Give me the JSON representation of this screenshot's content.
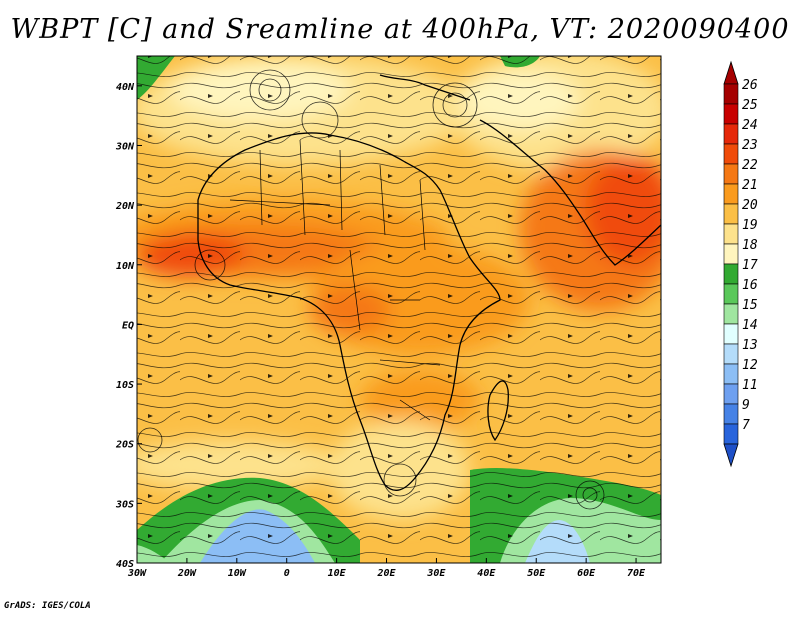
{
  "title": "WBPT [C] and Sreamline at 400hPa, VT: 2020090400",
  "credit": "GrADS: IGES/COLA",
  "map": {
    "lon_range": [
      -30,
      75
    ],
    "lat_range": [
      -40,
      45
    ],
    "lon_ticks": [
      {
        "value": -30,
        "label": "30W"
      },
      {
        "value": -20,
        "label": "20W"
      },
      {
        "value": -10,
        "label": "10W"
      },
      {
        "value": 0,
        "label": "0"
      },
      {
        "value": 10,
        "label": "10E"
      },
      {
        "value": 20,
        "label": "20E"
      },
      {
        "value": 30,
        "label": "30E"
      },
      {
        "value": 40,
        "label": "40E"
      },
      {
        "value": 50,
        "label": "50E"
      },
      {
        "value": 60,
        "label": "60E"
      },
      {
        "value": 70,
        "label": "70E"
      }
    ],
    "lat_ticks": [
      {
        "value": 40,
        "label": "40N"
      },
      {
        "value": 30,
        "label": "30N"
      },
      {
        "value": 20,
        "label": "20N"
      },
      {
        "value": 10,
        "label": "10N"
      },
      {
        "value": 0,
        "label": "EQ"
      },
      {
        "value": -10,
        "label": "10S"
      },
      {
        "value": -20,
        "label": "20S"
      },
      {
        "value": -30,
        "label": "30S"
      },
      {
        "value": -40,
        "label": "40S"
      }
    ]
  },
  "colorbar": {
    "levels": [
      {
        "label": "26",
        "color": "#a50000"
      },
      {
        "label": "25",
        "color": "#c80000"
      },
      {
        "label": "24",
        "color": "#e6280a"
      },
      {
        "label": "23",
        "color": "#f04b0a"
      },
      {
        "label": "22",
        "color": "#f57814"
      },
      {
        "label": "21",
        "color": "#fa9b1e"
      },
      {
        "label": "20",
        "color": "#fbbf46"
      },
      {
        "label": "19",
        "color": "#fde28c"
      },
      {
        "label": "18",
        "color": "#fff5be"
      },
      {
        "label": "17",
        "color": "#32aa32"
      },
      {
        "label": "16",
        "color": "#5ac85a"
      },
      {
        "label": "15",
        "color": "#a0e6a0"
      },
      {
        "label": "14",
        "color": "#e1ffff"
      },
      {
        "label": "13",
        "color": "#b4dcfa"
      },
      {
        "label": "12",
        "color": "#8cbef5"
      },
      {
        "label": "11",
        "color": "#6ea0f0"
      },
      {
        "label": "9",
        "color": "#4682e6"
      },
      {
        "label": "7",
        "color": "#2864dc"
      }
    ],
    "bottom_color": "#1e50c8"
  }
}
